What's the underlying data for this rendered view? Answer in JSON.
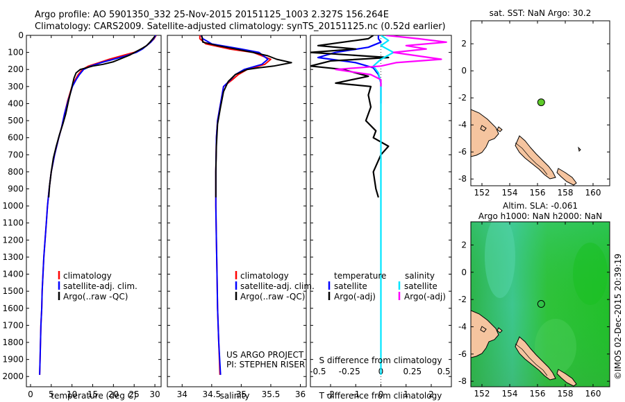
{
  "header": {
    "title_line1": "Argo profile: AO 5901350_332 25-Nov-2015 20151125_1003 2.327S 156.264E",
    "title_line2": "Climatology: CARS2009. Satellite-adjusted climatology: synTS_20151125.nc (0.52d earlier)"
  },
  "colors": {
    "climatology": "#ff0000",
    "satellite": "#0000ff",
    "argo": "#000000",
    "salinity_satellite": "#00e5ff",
    "salinity_argo": "#ff00ff",
    "land": "#f5c49f",
    "float_marker": "#5ecb2a",
    "sla_field": "#2fc02f"
  },
  "depth_axis": {
    "ticks": [
      "0",
      "100",
      "200",
      "300",
      "400",
      "500",
      "600",
      "700",
      "800",
      "900",
      "1000",
      "1100",
      "1200",
      "1300",
      "1400",
      "1500",
      "1600",
      "1700",
      "1800",
      "1900",
      "2000"
    ]
  },
  "chart_data": [
    {
      "type": "line",
      "name": "temperature_profile",
      "xlabel": "temperature (deg C)",
      "ylabel": "",
      "xlim": [
        -1,
        31.5
      ],
      "ylim": [
        2060,
        0
      ],
      "xticks": [
        "0",
        "5",
        "10",
        "15",
        "20",
        "25",
        "30"
      ],
      "legend": [
        "climatology",
        "satellite-adj. clim.",
        "Argo(..raw -QC)"
      ],
      "series": [
        {
          "name": "climatology",
          "color": "#ff0000",
          "points": [
            [
              30.3,
              0
            ],
            [
              29.8,
              20
            ],
            [
              29.0,
              40
            ],
            [
              28.0,
              60
            ],
            [
              26.8,
              80
            ],
            [
              25.0,
              100
            ],
            [
              22.0,
              120
            ],
            [
              19.0,
              140
            ],
            [
              16.5,
              160
            ],
            [
              14.0,
              180
            ],
            [
              12.5,
              200
            ],
            [
              11.5,
              230
            ],
            [
              10.8,
              260
            ],
            [
              10.0,
              300
            ],
            [
              9.0,
              380
            ],
            [
              8.2,
              460
            ],
            [
              7.5,
              540
            ],
            [
              6.8,
              600
            ],
            [
              5.8,
              700
            ],
            [
              5.0,
              800
            ],
            [
              4.5,
              900
            ],
            [
              4.1,
              1000
            ],
            [
              3.8,
              1100
            ],
            [
              3.5,
              1200
            ],
            [
              3.2,
              1300
            ],
            [
              3.0,
              1400
            ],
            [
              2.8,
              1500
            ],
            [
              2.7,
              1600
            ],
            [
              2.5,
              1700
            ],
            [
              2.4,
              1800
            ],
            [
              2.3,
              1900
            ],
            [
              2.2,
              1990
            ]
          ]
        },
        {
          "name": "satellite-adj. clim.",
          "color": "#0000ff",
          "points": [
            [
              30.2,
              0
            ],
            [
              29.7,
              20
            ],
            [
              29.0,
              40
            ],
            [
              28.0,
              60
            ],
            [
              27.0,
              80
            ],
            [
              25.5,
              100
            ],
            [
              23.0,
              120
            ],
            [
              20.0,
              140
            ],
            [
              17.0,
              160
            ],
            [
              14.5,
              180
            ],
            [
              12.8,
              200
            ],
            [
              11.8,
              230
            ],
            [
              11.0,
              260
            ],
            [
              10.1,
              300
            ],
            [
              9.1,
              380
            ],
            [
              8.2,
              460
            ],
            [
              7.5,
              540
            ],
            [
              6.8,
              600
            ],
            [
              5.8,
              700
            ],
            [
              5.0,
              800
            ],
            [
              4.5,
              900
            ],
            [
              4.1,
              1000
            ],
            [
              3.8,
              1100
            ],
            [
              3.5,
              1200
            ],
            [
              3.2,
              1300
            ],
            [
              3.0,
              1400
            ],
            [
              2.8,
              1500
            ],
            [
              2.7,
              1600
            ],
            [
              2.5,
              1700
            ],
            [
              2.4,
              1800
            ],
            [
              2.3,
              1900
            ],
            [
              2.2,
              1990
            ]
          ]
        },
        {
          "name": "Argo(..raw -QC)",
          "color": "#000000",
          "points": [
            [
              30.0,
              5
            ],
            [
              29.5,
              20
            ],
            [
              28.8,
              40
            ],
            [
              28.0,
              60
            ],
            [
              27.0,
              75
            ],
            [
              25.5,
              95
            ],
            [
              24.0,
              115
            ],
            [
              22.0,
              135
            ],
            [
              20.0,
              155
            ],
            [
              17.5,
              170
            ],
            [
              15.0,
              180
            ],
            [
              13.5,
              190
            ],
            [
              12.0,
              200
            ],
            [
              11.0,
              220
            ],
            [
              10.5,
              250
            ],
            [
              10.0,
              300
            ],
            [
              9.2,
              380
            ],
            [
              8.5,
              460
            ],
            [
              7.8,
              520
            ],
            [
              7.0,
              580
            ],
            [
              6.2,
              650
            ],
            [
              5.5,
              720
            ],
            [
              5.0,
              800
            ],
            [
              4.6,
              880
            ],
            [
              4.4,
              950
            ]
          ]
        }
      ]
    },
    {
      "type": "line",
      "name": "salinity_profile",
      "xlabel": "salinity",
      "ylabel": "",
      "xlim": [
        33.75,
        36.1
      ],
      "ylim": [
        2060,
        0
      ],
      "xticks": [
        "34",
        "34.5",
        "35",
        "35.5",
        "36"
      ],
      "legend": [
        "climatology",
        "satellite-adj. clim.",
        "Argo(..raw -QC)"
      ],
      "annotation_lines": [
        "US ARGO PROJECT",
        "PI: STEPHEN RISER"
      ],
      "series": [
        {
          "name": "climatology",
          "color": "#ff0000",
          "points": [
            [
              34.3,
              0
            ],
            [
              34.3,
              20
            ],
            [
              34.4,
              50
            ],
            [
              34.8,
              80
            ],
            [
              35.2,
              100
            ],
            [
              35.5,
              140
            ],
            [
              35.4,
              170
            ],
            [
              35.1,
              200
            ],
            [
              34.95,
              230
            ],
            [
              34.85,
              260
            ],
            [
              34.7,
              300
            ],
            [
              34.65,
              400
            ],
            [
              34.6,
              500
            ],
            [
              34.58,
              600
            ],
            [
              34.57,
              800
            ],
            [
              34.57,
              1000
            ],
            [
              34.58,
              1200
            ],
            [
              34.59,
              1400
            ],
            [
              34.6,
              1600
            ],
            [
              34.62,
              1800
            ],
            [
              34.64,
              1990
            ]
          ]
        },
        {
          "name": "satellite-adj. clim.",
          "color": "#0000ff",
          "points": [
            [
              34.32,
              0
            ],
            [
              34.35,
              20
            ],
            [
              34.5,
              50
            ],
            [
              35.0,
              80
            ],
            [
              35.3,
              100
            ],
            [
              35.45,
              140
            ],
            [
              35.35,
              170
            ],
            [
              35.05,
              200
            ],
            [
              34.9,
              230
            ],
            [
              34.82,
              260
            ],
            [
              34.7,
              300
            ],
            [
              34.65,
              400
            ],
            [
              34.6,
              500
            ],
            [
              34.58,
              600
            ],
            [
              34.57,
              800
            ],
            [
              34.57,
              1000
            ],
            [
              34.58,
              1200
            ],
            [
              34.59,
              1400
            ],
            [
              34.6,
              1600
            ],
            [
              34.62,
              1800
            ],
            [
              34.65,
              1990
            ]
          ]
        },
        {
          "name": "Argo(..raw -QC)",
          "color": "#000000",
          "points": [
            [
              34.33,
              0
            ],
            [
              34.35,
              40
            ],
            [
              34.6,
              60
            ],
            [
              34.9,
              80
            ],
            [
              35.2,
              100
            ],
            [
              35.45,
              120
            ],
            [
              35.6,
              140
            ],
            [
              35.85,
              160
            ],
            [
              35.55,
              180
            ],
            [
              35.3,
              190
            ],
            [
              35.1,
              200
            ],
            [
              34.9,
              230
            ],
            [
              34.78,
              270
            ],
            [
              34.7,
              330
            ],
            [
              34.65,
              420
            ],
            [
              34.6,
              520
            ],
            [
              34.58,
              650
            ],
            [
              34.57,
              800
            ],
            [
              34.57,
              950
            ]
          ]
        }
      ]
    },
    {
      "type": "line",
      "name": "difference_profile",
      "xlabel": "T difference from climatology",
      "xlabel_top": "S difference from climatology",
      "xlim": [
        -2.8,
        2.8
      ],
      "ylim": [
        2060,
        0
      ],
      "xticks_T": [
        "-2",
        "-1",
        "0",
        "1",
        "2"
      ],
      "xticks_S": [
        "-0.5",
        "-0.25",
        "0",
        "0.25",
        "0.5"
      ],
      "legend_temperature_title": "temperature",
      "legend_salinity_title": "salinity",
      "legend_temperature": [
        "satellite",
        "Argo(-adj)"
      ],
      "legend_salinity": [
        "satellite",
        "Argo(-adj)"
      ],
      "series": [
        {
          "name": "temperature satellite",
          "color": "#0000ff",
          "points": [
            [
              -0.1,
              0
            ],
            [
              -0.1,
              20
            ],
            [
              0.0,
              40
            ],
            [
              -0.5,
              70
            ],
            [
              -1.8,
              100
            ],
            [
              -2.5,
              130
            ],
            [
              -1.0,
              160
            ],
            [
              -0.3,
              190
            ],
            [
              -0.1,
              230
            ],
            [
              0.0,
              280
            ],
            [
              0.0,
              400
            ]
          ]
        },
        {
          "name": "temperature Argo(-adj)",
          "color": "#000000",
          "points": [
            [
              -0.3,
              0
            ],
            [
              -0.5,
              20
            ],
            [
              -1.5,
              40
            ],
            [
              -2.5,
              60
            ],
            [
              -1.0,
              80
            ],
            [
              -2.8,
              100
            ],
            [
              0.3,
              130
            ],
            [
              -2.0,
              150
            ],
            [
              -2.8,
              180
            ],
            [
              -1.5,
              200
            ],
            [
              -0.5,
              240
            ],
            [
              -1.8,
              280
            ],
            [
              -0.4,
              300
            ],
            [
              -0.5,
              350
            ],
            [
              -0.4,
              420
            ],
            [
              -0.6,
              500
            ],
            [
              -0.2,
              560
            ],
            [
              -0.3,
              600
            ],
            [
              0.3,
              650
            ],
            [
              0.0,
              700
            ],
            [
              -0.3,
              800
            ],
            [
              -0.2,
              900
            ],
            [
              -0.1,
              950
            ]
          ]
        },
        {
          "name": "salinity satellite",
          "color": "#00e5ff",
          "points": [
            [
              0.0,
              0
            ],
            [
              0.3,
              30
            ],
            [
              0.0,
              60
            ],
            [
              0.5,
              100
            ],
            [
              0.0,
              140
            ],
            [
              -0.3,
              180
            ],
            [
              -0.1,
              220
            ],
            [
              0.0,
              280
            ],
            [
              0.0,
              400
            ],
            [
              0.0,
              800
            ],
            [
              0.0,
              1200
            ],
            [
              0.0,
              1600
            ],
            [
              0.0,
              1990
            ]
          ]
        },
        {
          "name": "salinity Argo(-adj)",
          "color": "#ff00ff",
          "points": [
            [
              0.2,
              0
            ],
            [
              1.5,
              20
            ],
            [
              2.6,
              40
            ],
            [
              1.0,
              60
            ],
            [
              1.8,
              80
            ],
            [
              0.5,
              100
            ],
            [
              2.4,
              140
            ],
            [
              0.6,
              160
            ],
            [
              0.0,
              180
            ],
            [
              -1.8,
              200
            ],
            [
              -0.4,
              230
            ],
            [
              0.0,
              260
            ],
            [
              0.0,
              300
            ]
          ]
        }
      ]
    },
    {
      "type": "scatter",
      "name": "sst_map",
      "title": "sat. SST: NaN Argo: 30.2",
      "xlim": [
        151.2,
        161.2
      ],
      "ylim": [
        -8.5,
        3.7
      ],
      "xticks": [
        "152",
        "154",
        "156",
        "158",
        "160"
      ],
      "yticks": [
        "2",
        "0",
        "-2",
        "-4",
        "-6",
        "-8"
      ],
      "points": [
        {
          "lon": 156.264,
          "lat": -2.327
        }
      ]
    },
    {
      "type": "heatmap",
      "name": "sla_map",
      "title_line1": "Altim. SLA: -0.061",
      "title_line2": "Argo h1000: NaN h2000: NaN",
      "xlim": [
        151.2,
        161.2
      ],
      "ylim": [
        -8.4,
        3.7
      ],
      "xticks": [
        "152",
        "154",
        "156",
        "158",
        "160"
      ],
      "yticks": [
        "2",
        "0",
        "-2",
        "-4",
        "-6",
        "-8"
      ],
      "points": [
        {
          "lon": 156.264,
          "lat": -2.327
        }
      ]
    }
  ],
  "footer": {
    "credit": "©IMOS 02-Dec-2015 20:39:19"
  }
}
